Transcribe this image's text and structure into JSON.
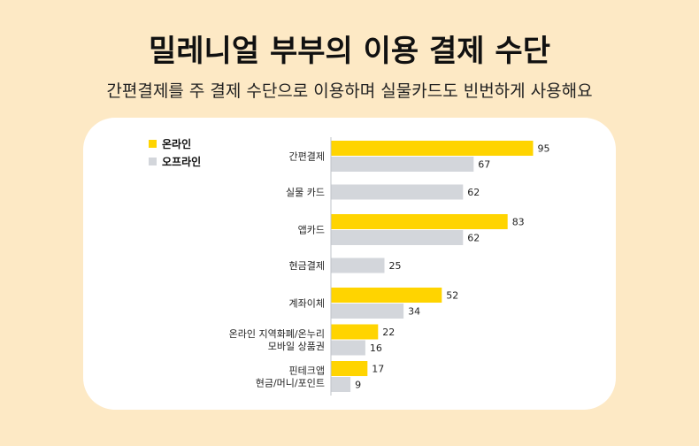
{
  "title": "밀레니얼 부부의 이용 결제 수단",
  "subtitle": "간편결제를 주 결제 수단으로 이용하며 실물카드도 빈번하게 사용해요",
  "colors": {
    "online": "#ffd400",
    "offline": "#d3d6db",
    "background": "#fde9c5",
    "card": "#ffffff"
  },
  "chart_data": {
    "type": "bar",
    "orientation": "horizontal",
    "categories": [
      [
        "간편결제"
      ],
      [
        "실물 카드"
      ],
      [
        "앱카드"
      ],
      [
        "현금결제"
      ],
      [
        "계좌이체"
      ],
      [
        "온라인 지역화폐/온누리",
        "모바일 상품권"
      ],
      [
        "핀테크앱",
        "현금/머니/포인트"
      ]
    ],
    "series": [
      {
        "name": "온라인",
        "color": "#ffd400",
        "values": [
          95,
          null,
          83,
          null,
          52,
          22,
          17
        ]
      },
      {
        "name": "오프라인",
        "color": "#d3d6db",
        "values": [
          67,
          62,
          62,
          25,
          34,
          16,
          9
        ]
      }
    ],
    "xlim": [
      0,
      100
    ],
    "legend": "top-left",
    "grid": false
  }
}
